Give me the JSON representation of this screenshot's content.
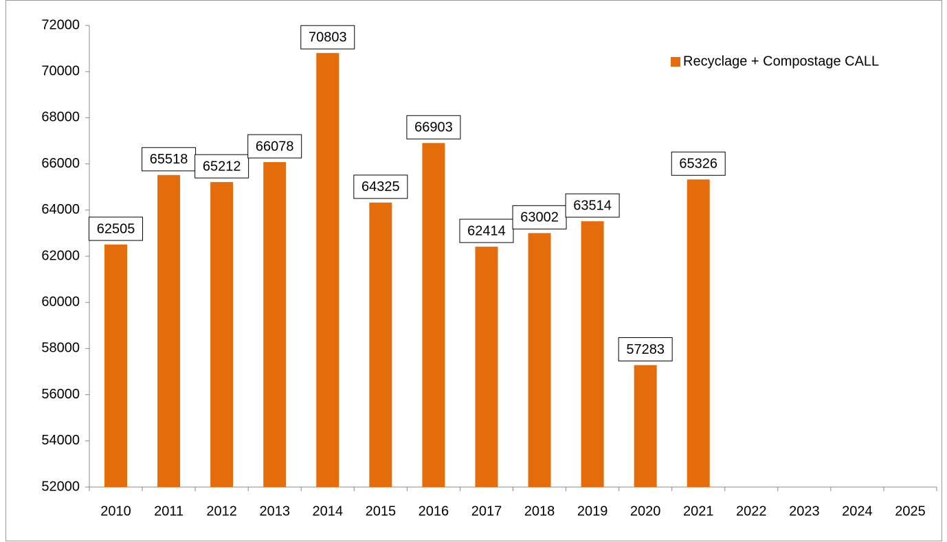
{
  "chart_data": {
    "type": "bar",
    "categories": [
      "2010",
      "2011",
      "2012",
      "2013",
      "2014",
      "2015",
      "2016",
      "2017",
      "2018",
      "2019",
      "2020",
      "2021",
      "2022",
      "2023",
      "2024",
      "2025"
    ],
    "series": [
      {
        "name": "Recyclage + Compostage CALL",
        "color": "#e46c0a",
        "values": [
          62505,
          65518,
          65212,
          66078,
          70803,
          64325,
          66903,
          62414,
          63002,
          63514,
          57283,
          65326,
          null,
          null,
          null,
          null
        ]
      }
    ],
    "ylim": [
      52000,
      72000
    ],
    "yticks": [
      52000,
      54000,
      56000,
      58000,
      60000,
      62000,
      64000,
      66000,
      68000,
      70000,
      72000
    ],
    "legend": "top-right"
  }
}
